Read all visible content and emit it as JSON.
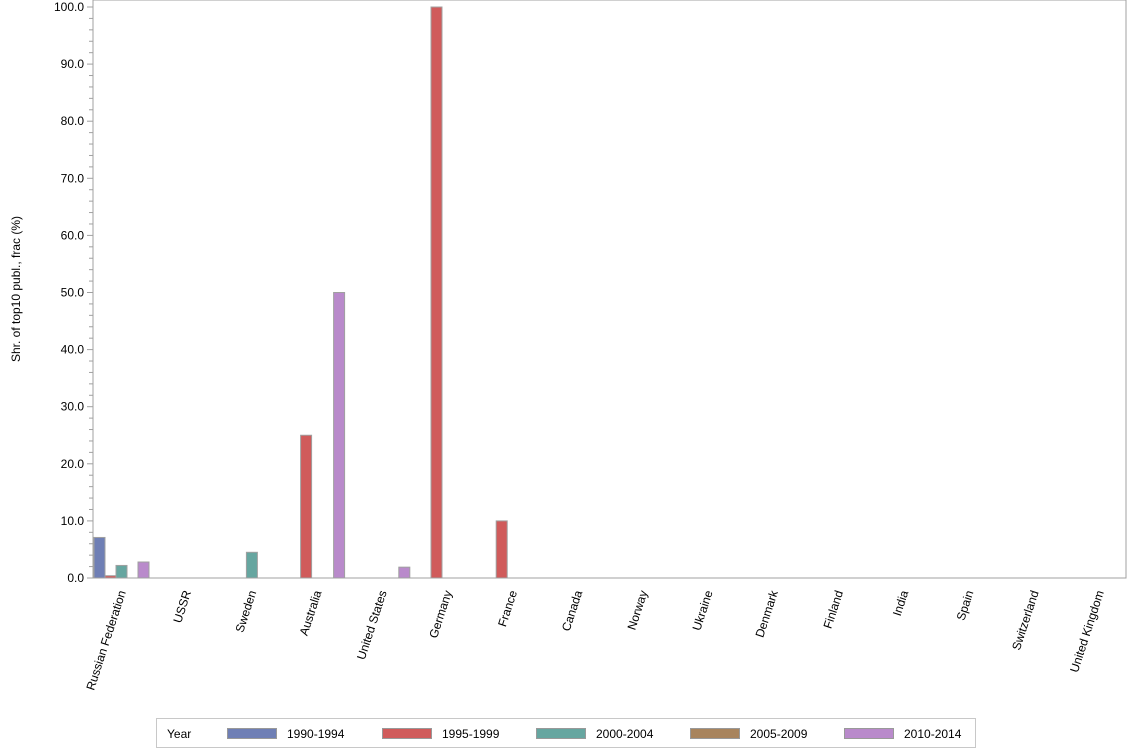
{
  "chart_data": {
    "type": "bar",
    "title": "",
    "xlabel": "",
    "ylabel": "Shr. of top10 publ., frac (%)",
    "ylim": [
      0,
      100
    ],
    "yticks": [
      "0.0",
      "10.0",
      "20.0",
      "30.0",
      "40.0",
      "50.0",
      "60.0",
      "70.0",
      "80.0",
      "90.0",
      "100.0"
    ],
    "grid": false,
    "legend_position": "bottom",
    "legend_title": "Year",
    "categories": [
      "Russian Federation",
      "USSR",
      "Sweden",
      "Australia",
      "United States",
      "Germany",
      "France",
      "Canada",
      "Norway",
      "Ukraine",
      "Denmark",
      "Finland",
      "India",
      "Spain",
      "Switzerland",
      "United Kingdom"
    ],
    "series": [
      {
        "name": "1990-1994",
        "color": "#6f7fb5",
        "values": [
          7.1,
          0,
          0,
          0,
          0,
          0,
          0,
          0,
          0,
          0,
          0,
          0,
          0,
          0,
          0,
          0
        ]
      },
      {
        "name": "1995-1999",
        "color": "#d05b5b",
        "values": [
          0.4,
          0,
          0,
          25.0,
          0,
          100.0,
          10.0,
          0,
          0,
          0,
          0,
          0,
          0,
          0,
          0,
          0
        ]
      },
      {
        "name": "2000-2004",
        "color": "#66a6a0",
        "values": [
          2.2,
          0,
          4.5,
          0,
          0,
          0,
          0,
          0,
          0,
          0,
          0,
          0,
          0,
          0,
          0,
          0
        ]
      },
      {
        "name": "2005-2009",
        "color": "#a8845d",
        "values": [
          0,
          0,
          0,
          0,
          0,
          0,
          0,
          0,
          0,
          0,
          0,
          0,
          0,
          0,
          0,
          0
        ]
      },
      {
        "name": "2010-2014",
        "color": "#b98acb",
        "values": [
          2.8,
          0,
          0,
          50.0,
          1.9,
          0,
          0,
          0,
          0,
          0,
          0,
          0,
          0,
          0,
          0,
          0
        ]
      }
    ]
  }
}
